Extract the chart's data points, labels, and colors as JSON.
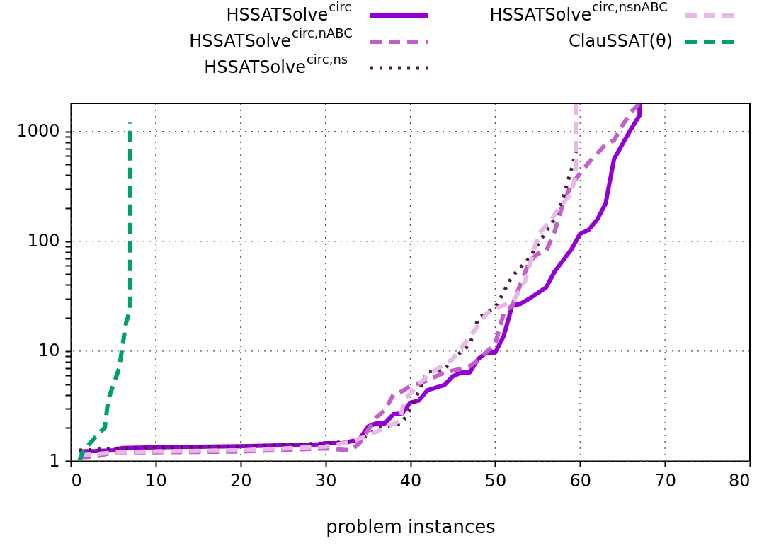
{
  "chart_data": {
    "type": "line",
    "xlabel": "problem instances",
    "xlim": [
      0,
      80
    ],
    "xticks": [
      0,
      10,
      20,
      30,
      40,
      50,
      60,
      70,
      80
    ],
    "ylim": [
      1,
      1800
    ],
    "log": true,
    "yticks": [
      1,
      {
        "value": 2,
        "label": null
      },
      {
        "value": 3,
        "label": null
      },
      {
        "value": 4,
        "label": null
      },
      {
        "value": 5,
        "label": null
      },
      {
        "value": 6,
        "label": null
      },
      {
        "value": 7,
        "label": null
      },
      {
        "value": 8,
        "label": null
      },
      {
        "value": 9,
        "label": null
      },
      10,
      {
        "value": 20,
        "label": null
      },
      {
        "value": 30,
        "label": null
      },
      {
        "value": 40,
        "label": null
      },
      {
        "value": 50,
        "label": null
      },
      {
        "value": 60,
        "label": null
      },
      {
        "value": 70,
        "label": null
      },
      {
        "value": 80,
        "label": null
      },
      {
        "value": 90,
        "label": null
      },
      100,
      {
        "value": 200,
        "label": null
      },
      {
        "value": 300,
        "label": null
      },
      {
        "value": 400,
        "label": null
      },
      {
        "value": 500,
        "label": null
      },
      {
        "value": 600,
        "label": null
      },
      {
        "value": 700,
        "label": null
      },
      {
        "value": 800,
        "label": null
      },
      {
        "value": 900,
        "label": null
      },
      1000
    ],
    "grid": true,
    "legend": "top",
    "marker": "none",
    "series": [
      {
        "name": "HSSATSolve$^{circ}$",
        "color": "#9400d3",
        "line_style": "solid",
        "x": [
          1,
          3,
          5,
          6,
          10,
          20,
          29,
          30,
          32,
          34,
          35,
          36,
          37,
          38,
          39,
          40,
          41,
          42,
          44,
          45,
          46,
          47,
          48,
          49,
          50,
          51,
          52,
          53,
          54,
          56,
          57,
          58,
          59,
          60,
          61,
          62,
          63,
          64,
          65,
          66,
          67,
          67
        ],
        "values": [
          1.22,
          1.23,
          1.25,
          1.31,
          1.33,
          1.36,
          1.41,
          1.45,
          1.45,
          1.57,
          2.05,
          2.2,
          2.2,
          2.66,
          2.7,
          3.4,
          3.55,
          4.4,
          4.9,
          5.9,
          6.4,
          6.4,
          8.5,
          9.7,
          9.7,
          13.7,
          26,
          27,
          30,
          38,
          53,
          67,
          85,
          117,
          127,
          157,
          220,
          560,
          770,
          1050,
          1400,
          1800
        ]
      },
      {
        "name": "HSSATSolve$^{circ,nABC}$",
        "color": "#c060c8",
        "line_style": "dashed",
        "x": [
          1,
          3,
          5,
          10,
          20,
          30,
          33,
          34,
          35,
          36,
          37,
          38,
          39,
          40,
          42,
          44,
          46,
          47,
          48,
          50,
          51,
          52,
          54,
          55,
          56,
          57,
          58,
          59,
          61,
          63,
          64,
          65,
          66,
          67
        ],
        "values": [
          1.08,
          1.1,
          1.2,
          1.2,
          1.22,
          1.3,
          1.25,
          1.45,
          1.9,
          2.5,
          2.9,
          4.0,
          4.3,
          4.8,
          5.4,
          6.4,
          6.9,
          7.3,
          8.3,
          11.7,
          22,
          26,
          65,
          77,
          81,
          123,
          222,
          330,
          520,
          760,
          830,
          1140,
          1500,
          1800
        ]
      },
      {
        "name": "HSSATSolve$^{circ,ns}$",
        "color": "#4b2040",
        "line_style": "dotted",
        "x": [
          1,
          3,
          5,
          10,
          20,
          30,
          33,
          35,
          36,
          38,
          39,
          40,
          41,
          42,
          43,
          44,
          45,
          47,
          48,
          50,
          52,
          54,
          56,
          57,
          58,
          59,
          59.5
        ],
        "values": [
          1.25,
          1.27,
          1.3,
          1.32,
          1.35,
          1.45,
          1.5,
          1.7,
          2.0,
          2.1,
          2.2,
          3.0,
          4.3,
          6.5,
          6.6,
          6.7,
          8.5,
          11.4,
          20,
          25,
          48,
          70,
          123,
          160,
          250,
          460,
          650
        ]
      },
      {
        "name": "HSSATSolve$^{circ,nsnABC}$",
        "color": "#e8b8e8",
        "line_style": "dashed",
        "x": [
          1,
          3,
          5,
          10,
          20,
          30,
          33,
          35,
          37,
          38.7,
          39.3,
          42,
          45,
          46.5,
          49,
          50.4,
          52.2,
          53.5,
          55.1,
          56.5,
          57.5,
          58.9,
          59.5,
          59.5
        ],
        "values": [
          1.13,
          1.15,
          1.2,
          1.22,
          1.25,
          1.35,
          1.5,
          1.7,
          2.0,
          2.3,
          3.6,
          6.0,
          8.5,
          12,
          22,
          25,
          29,
          43,
          117,
          152,
          200,
          270,
          400,
          1800
        ]
      },
      {
        "name": "ClauSSAT(θ)",
        "color": "#009e73",
        "line_style": "dashed",
        "x": [
          1,
          1.5,
          3.5,
          4,
          4.4,
          5.7,
          6.5,
          7,
          7
        ],
        "values": [
          1.0,
          1.25,
          1.85,
          2.0,
          3.6,
          7,
          18,
          24,
          1200
        ]
      }
    ]
  }
}
